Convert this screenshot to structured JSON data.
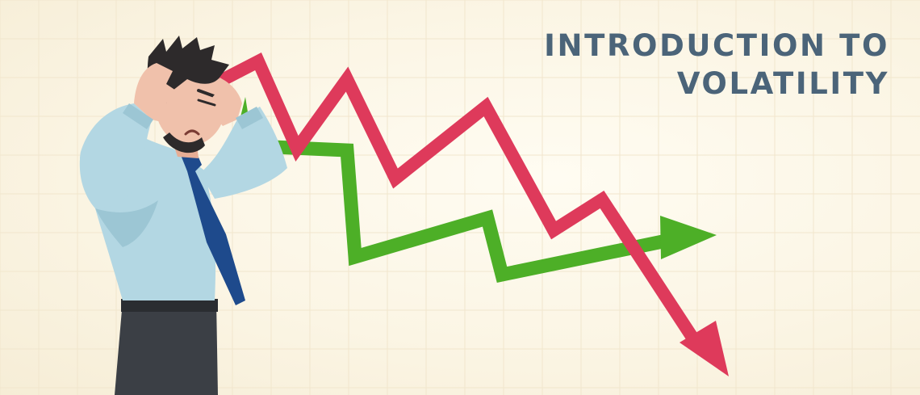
{
  "banner": {
    "title_line1": "INTRODUCTION TO",
    "title_line2": "VOLATILITY"
  },
  "colors": {
    "title": "#4b6479",
    "down_arrow": "#de3a5b",
    "up_arrow": "#4daf27",
    "shirt": "#b3d7e3",
    "tie": "#1e4a8c",
    "trousers": "#3b3f45",
    "skin": "#f0c1ab",
    "hair": "#2d2a2b",
    "grid": "#f1e6cd"
  },
  "illustration": {
    "figure": "stressed-businessman",
    "down_arrow_icon": "arrow-trend-down-icon",
    "up_arrow_icon": "arrow-trend-up-icon"
  }
}
